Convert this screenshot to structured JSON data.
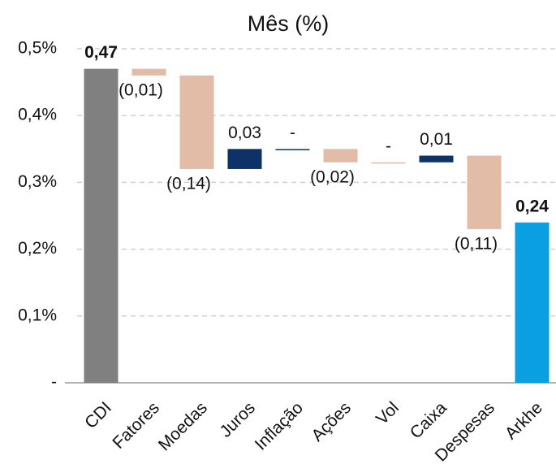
{
  "chart_data": {
    "type": "waterfall",
    "title": "Mês (%)",
    "categories": [
      "CDI",
      "Fatores",
      "Moedas",
      "Juros",
      "Inflação",
      "Ações",
      "Vol",
      "Caixa",
      "Despesas",
      "Arkhe"
    ],
    "values": [
      0.47,
      -0.01,
      -0.14,
      0.03,
      0,
      -0.02,
      0,
      0.01,
      -0.11,
      0.24
    ],
    "value_labels": [
      "0,47",
      "(0,01)",
      "(0,14)",
      "0,03",
      "-",
      "(0,02)",
      "-",
      "0,01",
      "(0,11)",
      "0,24"
    ],
    "measure": [
      "absolute",
      "relative",
      "relative",
      "relative",
      "relative",
      "relative",
      "relative",
      "relative",
      "relative",
      "total"
    ],
    "colors": [
      "#808080",
      "#e2bca6",
      "#e2bca6",
      "#0d3268",
      "#0d3268",
      "#e2bca6",
      "#e2bca6",
      "#0d3268",
      "#e2bca6",
      "#0a9fe0"
    ],
    "ylim": [
      0,
      0.5
    ],
    "yticks": [
      {
        "value": 0,
        "label": "-"
      },
      {
        "value": 0.1,
        "label": "0,1%"
      },
      {
        "value": 0.2,
        "label": "0,2%"
      },
      {
        "value": 0.3,
        "label": "0,3%"
      },
      {
        "value": 0.4,
        "label": "0,4%"
      },
      {
        "value": 0.5,
        "label": "0,5%"
      }
    ],
    "grid": true
  }
}
